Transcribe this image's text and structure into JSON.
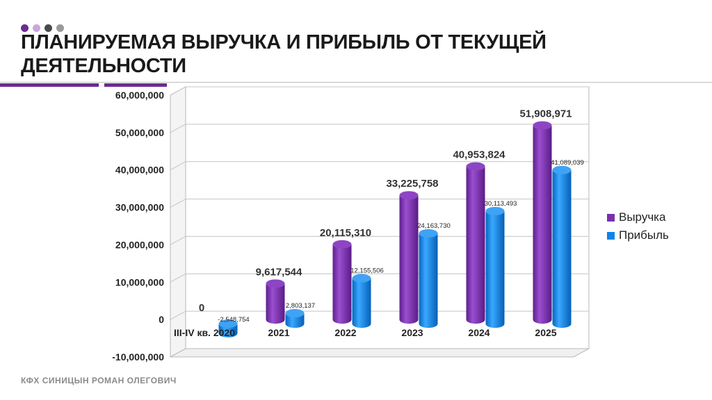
{
  "header": {
    "title": "ПЛАНИРУЕМАЯ ВЫРУЧКА И ПРИБЫЛЬ ОТ ТЕКУЩЕЙ ДЕЯТЕЛЬНОСТИ",
    "dot_colors": [
      "#6a2c91",
      "#c9a6dc",
      "#4a4a4a",
      "#9a9a9a"
    ],
    "accent_color": "#6a2c91"
  },
  "footer": {
    "text": "КФХ СИНИЦЫН РОМАН ОЛЕГОВИЧ"
  },
  "legend": {
    "items": [
      {
        "label": "Выручка",
        "color": "#7b2fb0"
      },
      {
        "label": "Прибыль",
        "color": "#0a84e8"
      }
    ]
  },
  "chart_data": {
    "type": "bar",
    "style": "3d-cylinder",
    "categories": [
      "III-IV кв. 2020",
      "2021",
      "2022",
      "2023",
      "2024",
      "2025"
    ],
    "series": [
      {
        "name": "Выручка",
        "color": "#7b2fb0",
        "values": [
          0,
          9617544,
          20115310,
          33225758,
          40953824,
          51908971
        ],
        "labels": [
          "0",
          "9,617,544",
          "20,115,310",
          "33,225,758",
          "40,953,824",
          "51,908,971"
        ]
      },
      {
        "name": "Прибыль",
        "color": "#0a84e8",
        "values": [
          -2548754,
          2803137,
          12155506,
          24163730,
          30113493,
          41089039
        ],
        "labels": [
          "-2,548,754",
          "2,803,137",
          "12,155,506",
          "24,163,730",
          "30,113,493",
          "41,089,039"
        ]
      }
    ],
    "yticks": [
      "60,000,000",
      "50,000,000",
      "40,000,000",
      "30,000,000",
      "20,000,000",
      "10,000,000",
      "0",
      "-10,000,000"
    ],
    "ytick_values": [
      60000000,
      50000000,
      40000000,
      30000000,
      20000000,
      10000000,
      0,
      -10000000
    ],
    "ylim": [
      -10000000,
      60000000
    ],
    "grid": true,
    "legend_position": "right"
  }
}
